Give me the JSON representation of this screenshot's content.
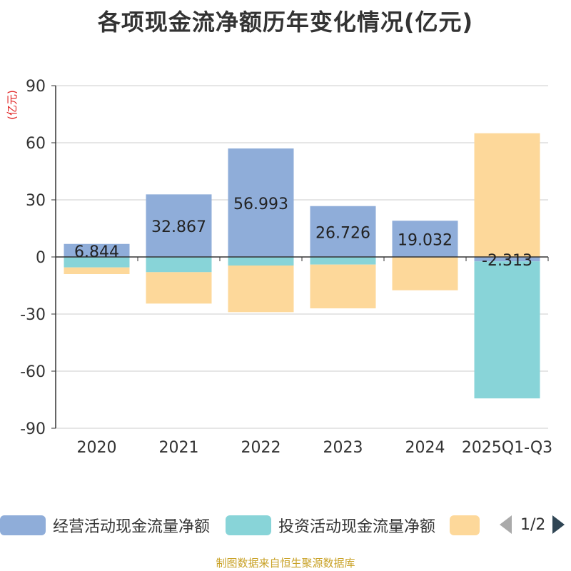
{
  "title": "各项现金流净额历年变化情况(亿元)",
  "footer": "制图数据来自恒生聚源数据库",
  "legend": {
    "items": [
      {
        "label": "经营活动现金流量净额",
        "color": "#8fadd9"
      },
      {
        "label": "投资活动现金流量净额",
        "color": "#88d4d8"
      },
      {
        "label": "",
        "color": "#fdd89a"
      }
    ],
    "page": "1/2"
  },
  "chart_data": {
    "type": "bar",
    "stacked": true,
    "title": "各项现金流净额历年变化情况(亿元)",
    "ylabel": "(亿元)",
    "xlabel": "",
    "ylim": [
      -90,
      90
    ],
    "yticks": [
      90,
      60,
      30,
      0,
      -30,
      -60,
      -90
    ],
    "categories": [
      "2020",
      "2021",
      "2022",
      "2023",
      "2024",
      "2025Q1-Q3"
    ],
    "series": [
      {
        "name": "经营活动现金流量净额",
        "color": "#8fadd9",
        "values": [
          6.844,
          32.867,
          56.993,
          26.726,
          19.032,
          -2.313
        ],
        "labels": [
          "6.844",
          "32.867",
          "56.993",
          "26.726",
          "19.032",
          "-2.313"
        ]
      },
      {
        "name": "投资活动现金流量净额",
        "color": "#88d4d8",
        "values": [
          -5.5,
          -8,
          -4.5,
          -4,
          0,
          -72
        ]
      },
      {
        "name": "",
        "color": "#fdd89a",
        "values": [
          -3.5,
          -16.5,
          -24.5,
          -23,
          -17.5,
          65
        ]
      }
    ]
  }
}
